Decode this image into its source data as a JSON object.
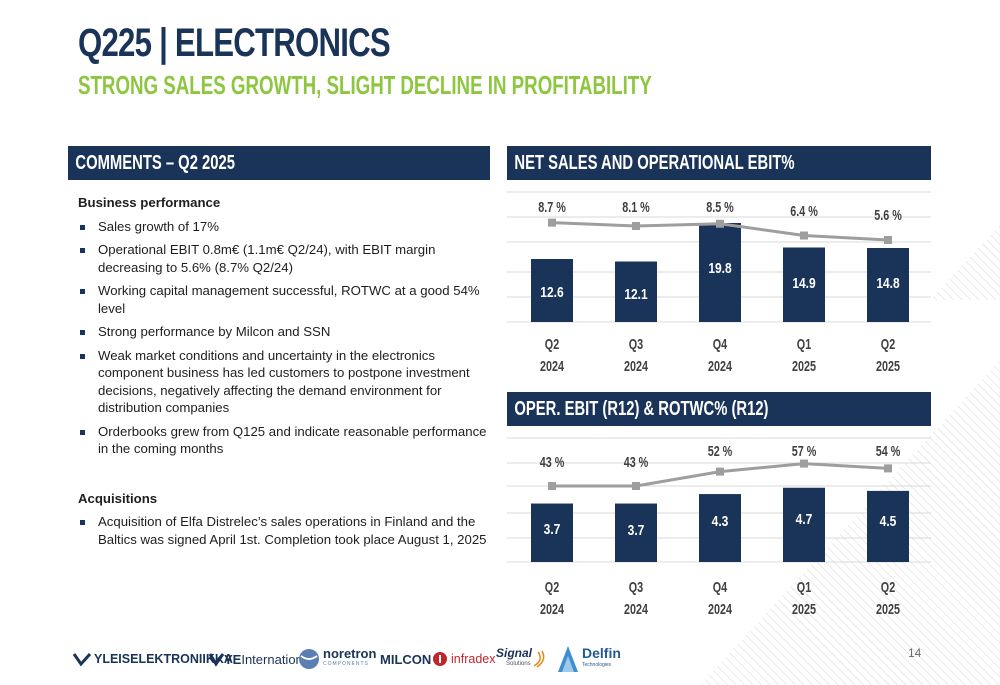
{
  "header": {
    "title": "Q225 | ELECTRONICS",
    "subtitle": "STRONG SALES GROWTH, SLIGHT DECLINE IN PROFITABILITY"
  },
  "comments": {
    "heading": "COMMENTS – Q2 2025",
    "business_heading": "Business performance",
    "business_items": [
      "Sales growth of 17%",
      "Operational EBIT 0.8m€ (1.1m€ Q2/24), with EBIT margin decreasing to 5.6% (8.7% Q2/24)",
      "Working capital management successful, ROTWC at a good 54% level",
      "Strong performance by Milcon and SSN",
      "Weak market conditions and uncertainty in the electronics component business has led customers to postpone investment decisions, negatively affecting the demand environment for distribution companies",
      "Orderbooks grew from Q125 and indicate reasonable performance in the coming months"
    ],
    "acquisitions_heading": "Acquisitions",
    "acquisitions_items": [
      "Acquisition of Elfa Distrelec’s sales operations in Finland and the Baltics was signed April 1st. Completion took place August 1, 2025"
    ]
  },
  "chart_data": [
    {
      "type": "bar",
      "title": "NET SALES AND OPERATIONAL EBIT%",
      "categories": [
        "Q2 2024",
        "Q3 2024",
        "Q4 2024",
        "Q1 2025",
        "Q2 2025"
      ],
      "category_lines": [
        [
          "Q2",
          "2024"
        ],
        [
          "Q3",
          "2024"
        ],
        [
          "Q4",
          "2024"
        ],
        [
          "Q1",
          "2025"
        ],
        [
          "Q2",
          "2025"
        ]
      ],
      "series": [
        {
          "type": "bar",
          "values": [
            12.6,
            12.1,
            19.8,
            14.9,
            14.8
          ],
          "labels": [
            "12.6",
            "12.1",
            "19.8",
            "14.9",
            "14.8"
          ]
        },
        {
          "type": "line",
          "values": [
            8.7,
            8.1,
            8.5,
            6.4,
            5.6
          ],
          "labels": [
            "8.7 %",
            "8.1 %",
            "8.5 %",
            "6.4 %",
            "5.6 %"
          ]
        }
      ],
      "grid": true
    },
    {
      "type": "bar",
      "title": "OPER. EBIT (R12) & ROTWC% (R12)",
      "categories": [
        "Q2 2024",
        "Q3 2024",
        "Q4 2024",
        "Q1 2025",
        "Q2 2025"
      ],
      "category_lines": [
        [
          "Q2",
          "2024"
        ],
        [
          "Q3",
          "2024"
        ],
        [
          "Q4",
          "2024"
        ],
        [
          "Q1",
          "2025"
        ],
        [
          "Q2",
          "2025"
        ]
      ],
      "series": [
        {
          "type": "bar",
          "values": [
            3.7,
            3.7,
            4.3,
            4.7,
            4.5
          ],
          "labels": [
            "3.7",
            "3.7",
            "4.3",
            "4.7",
            "4.5"
          ]
        },
        {
          "type": "line",
          "values": [
            43,
            43,
            52,
            57,
            54
          ],
          "labels": [
            "43 %",
            "43 %",
            "52 %",
            "57 %",
            "54 %"
          ]
        }
      ],
      "grid": true
    }
  ],
  "colors": {
    "navy": "#1a3358",
    "green": "#8dc63f",
    "line": "#9e9e9e",
    "grid": "#d9d9d9"
  },
  "logos": [
    {
      "name": "yleiselektroniikka",
      "text": "YLEISELEKTRONIIKKA"
    },
    {
      "name": "ye-international",
      "text_bold": "YE",
      "text": "International"
    },
    {
      "name": "noretron",
      "text": "noretron",
      "sub": "COMPONENTS"
    },
    {
      "name": "milcon",
      "text": "MILCON"
    },
    {
      "name": "infradex",
      "text": "infradex"
    },
    {
      "name": "signal-solutions",
      "text": "Signal",
      "sub": "Solutions"
    },
    {
      "name": "delfin",
      "text": "Delfin",
      "sub": "Technologies"
    }
  ],
  "page_number": "14"
}
